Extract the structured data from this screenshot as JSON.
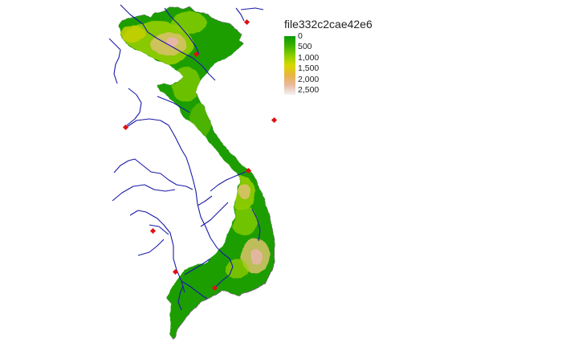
{
  "legend": {
    "title": "file332c2cae42e6",
    "ticks": [
      "0",
      "500",
      "1,000",
      "1,500",
      "2,000",
      "2,500"
    ],
    "gradient": [
      "#0a9a00",
      "#3fb200",
      "#8ccf00",
      "#d8d800",
      "#e8b340",
      "#e9b9a2",
      "#f2f2f2"
    ]
  },
  "colors": {
    "river": "#1a1aa8",
    "city": "#e01010",
    "land_low": "#1f9e00",
    "land_mid": "#9bd000",
    "land_high": "#d9c26a",
    "land_peak": "#e7b7a6",
    "coast": "#6b6b6b"
  }
}
